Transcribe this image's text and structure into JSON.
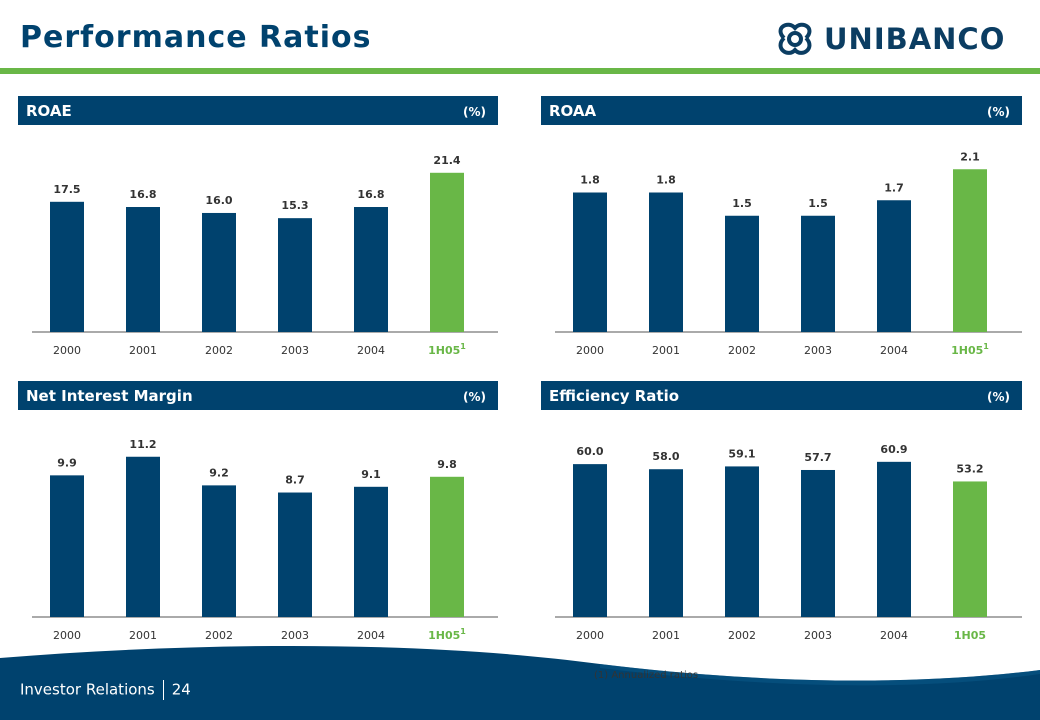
{
  "page": {
    "title": "Performance Ratios",
    "logo_text": "UNIBANCO",
    "footnote": "(1) Annualized ratios",
    "footer": {
      "label": "Investor Relations",
      "page_number": "24"
    }
  },
  "colors": {
    "navy": "#00426e",
    "green": "#69b747",
    "text": "#333333"
  },
  "chart_data": [
    {
      "type": "bar",
      "title": "ROAE",
      "unit": "(%)",
      "categories": [
        "2000",
        "2001",
        "2002",
        "2003",
        "2004",
        "1H05"
      ],
      "category_superscripts": [
        "",
        "",
        "",
        "",
        "",
        "1"
      ],
      "values": [
        17.5,
        16.8,
        16.0,
        15.3,
        16.8,
        21.4
      ],
      "value_labels": [
        "17.5",
        "16.8",
        "16.0",
        "15.3",
        "16.8",
        "21.4"
      ],
      "highlight_last": true,
      "ylim": [
        0,
        25
      ]
    },
    {
      "type": "bar",
      "title": "ROAA",
      "unit": "(%)",
      "categories": [
        "2000",
        "2001",
        "2002",
        "2003",
        "2004",
        "1H05"
      ],
      "category_superscripts": [
        "",
        "",
        "",
        "",
        "",
        "1"
      ],
      "values": [
        1.8,
        1.8,
        1.5,
        1.5,
        1.7,
        2.1
      ],
      "value_labels": [
        "1.8",
        "1.8",
        "1.5",
        "1.5",
        "1.7",
        "2.1"
      ],
      "highlight_last": true,
      "ylim": [
        0,
        2.4
      ]
    },
    {
      "type": "bar",
      "title": "Net Interest Margin",
      "unit": "(%)",
      "categories": [
        "2000",
        "2001",
        "2002",
        "2003",
        "2004",
        "1H05"
      ],
      "category_superscripts": [
        "",
        "",
        "",
        "",
        "",
        "1"
      ],
      "values": [
        9.9,
        11.2,
        9.2,
        8.7,
        9.1,
        9.8
      ],
      "value_labels": [
        "9.9",
        "11.2",
        "9.2",
        "8.7",
        "9.1",
        "9.8"
      ],
      "highlight_last": true,
      "ylim": [
        0,
        13
      ]
    },
    {
      "type": "bar",
      "title": "Efficiency Ratio",
      "unit": "(%)",
      "categories": [
        "2000",
        "2001",
        "2002",
        "2003",
        "2004",
        "1H05"
      ],
      "category_superscripts": [
        "",
        "",
        "",
        "",
        "",
        ""
      ],
      "values": [
        60.0,
        58.0,
        59.1,
        57.7,
        60.9,
        53.2
      ],
      "value_labels": [
        "60.0",
        "58.0",
        "59.1",
        "57.7",
        "60.9",
        "53.2"
      ],
      "highlight_last": true,
      "ylim": [
        0,
        73
      ]
    }
  ]
}
